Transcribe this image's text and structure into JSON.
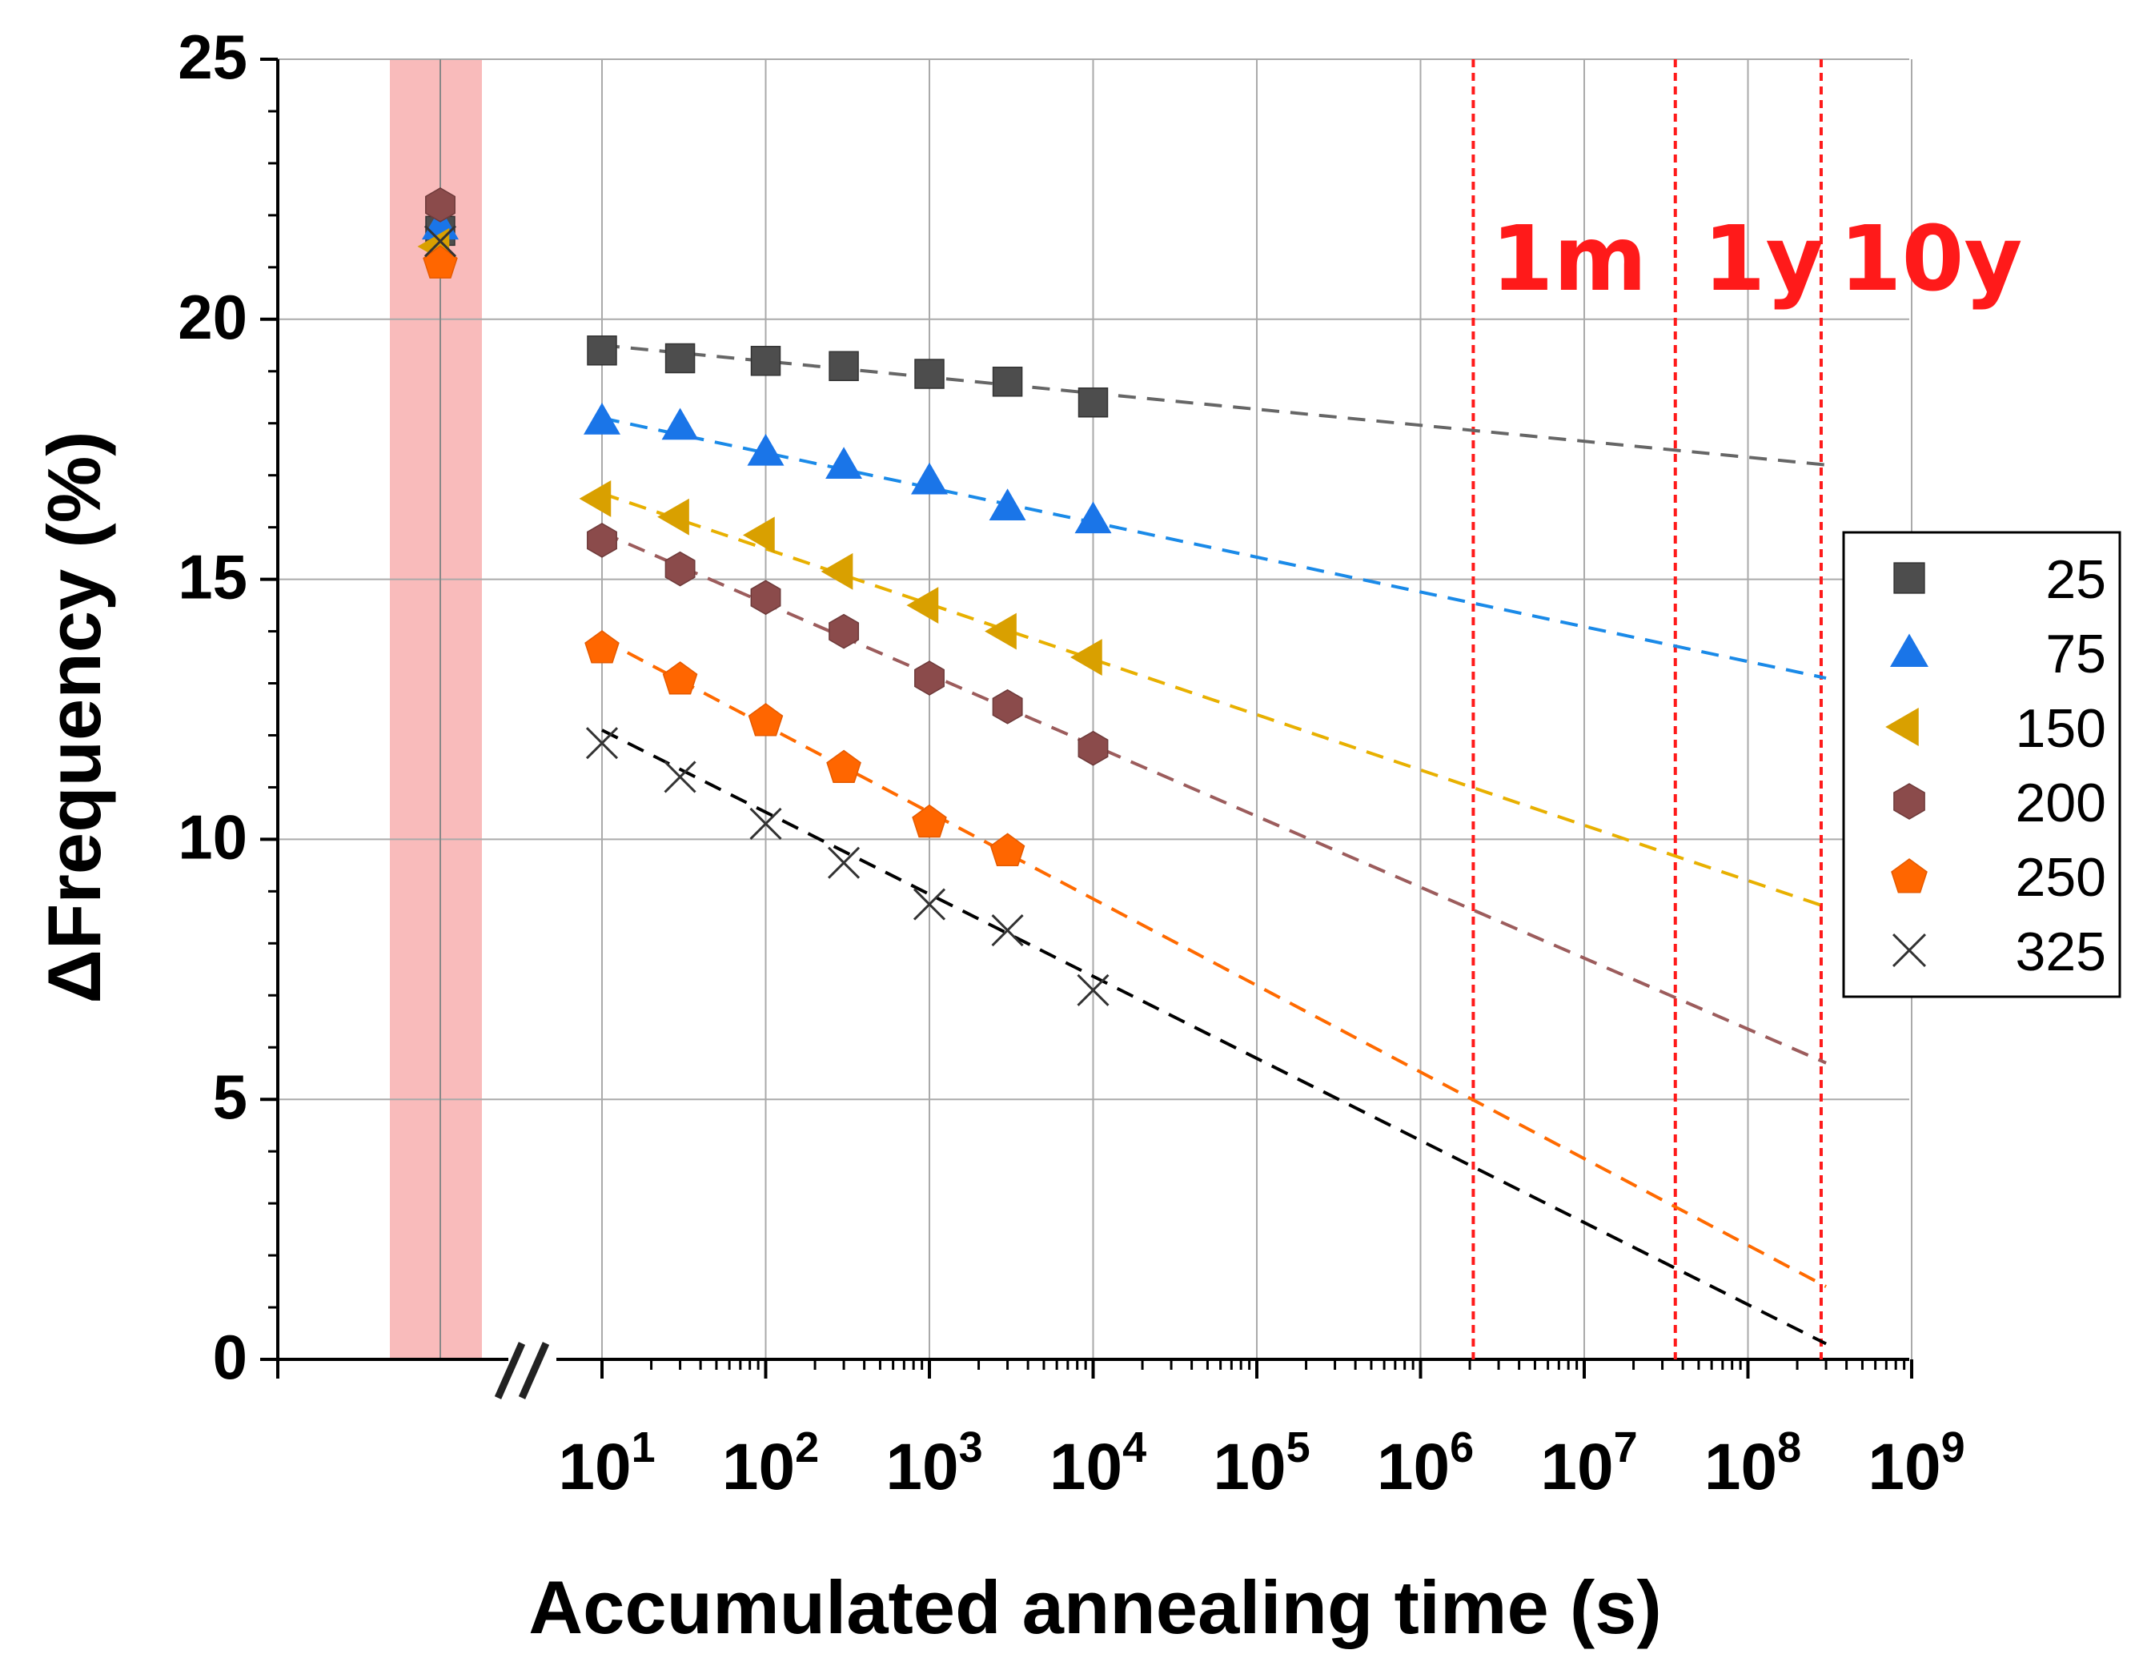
{
  "chart_data": {
    "type": "scatter",
    "title": "",
    "xlabel": "Accumulated annealing time (s)",
    "ylabel": "ΔFrequency (%)",
    "x_scale": "log",
    "xlim_log10": [
      1,
      9
    ],
    "ylim": [
      0,
      25
    ],
    "y_ticks": [
      0,
      5,
      10,
      15,
      20,
      25
    ],
    "x_tick_exponents": [
      1,
      2,
      3,
      4,
      5,
      6,
      7,
      8,
      9
    ],
    "x_tick_base": "10",
    "grid": true,
    "legend_position": "right",
    "initial_band_color": "#f8b4b4",
    "series": [
      {
        "name": "25",
        "marker": "square",
        "color": "#4d4d4d",
        "line_color": "#666666",
        "initial": 21.7,
        "x": [
          10,
          30,
          100,
          300,
          1000,
          3000,
          10000
        ],
        "y": [
          19.4,
          19.25,
          19.2,
          19.1,
          18.95,
          18.8,
          18.4
        ],
        "fit": {
          "x0": 10,
          "y0": 19.5,
          "x1": 300000000.0,
          "y1": 17.2
        }
      },
      {
        "name": "75",
        "marker": "triangle-up",
        "color": "#1a75e8",
        "line_color": "#1a8ae8",
        "initial": 21.8,
        "x": [
          10,
          30,
          100,
          300,
          1000,
          3000,
          10000
        ],
        "y": [
          18.05,
          17.95,
          17.45,
          17.2,
          16.9,
          16.4,
          16.15
        ],
        "fit": {
          "x0": 10,
          "y0": 18.1,
          "x1": 300000000.0,
          "y1": 13.1
        }
      },
      {
        "name": "150",
        "marker": "triangle-left",
        "color": "#d9a000",
        "line_color": "#e8b000",
        "initial": 21.4,
        "x": [
          10,
          30,
          100,
          300,
          1000,
          3000,
          10000
        ],
        "y": [
          16.55,
          16.2,
          15.85,
          15.15,
          14.5,
          14.0,
          13.5
        ],
        "fit": {
          "x0": 10,
          "y0": 16.65,
          "x1": 300000000.0,
          "y1": 8.7
        }
      },
      {
        "name": "200",
        "marker": "hexagon",
        "color": "#8b4b4b",
        "line_color": "#9c5c5c",
        "initial": 22.2,
        "x": [
          10,
          30,
          100,
          300,
          1000,
          3000,
          10000
        ],
        "y": [
          15.75,
          15.2,
          14.65,
          14.0,
          13.1,
          12.55,
          11.75
        ],
        "fit": {
          "x0": 10,
          "y0": 15.9,
          "x1": 300000000.0,
          "y1": 5.7
        }
      },
      {
        "name": "250",
        "marker": "pentagon",
        "color": "#ff6600",
        "line_color": "#ff6a00",
        "initial": 21.1,
        "x": [
          10,
          30,
          100,
          300,
          1000,
          3000
        ],
        "y": [
          13.7,
          13.1,
          12.3,
          11.4,
          10.35,
          9.8
        ],
        "fit": {
          "x0": 10,
          "y0": 13.85,
          "x1": 300000000.0,
          "y1": 1.4
        }
      },
      {
        "name": "325",
        "marker": "x",
        "color": "#333333",
        "line_color": "#000000",
        "initial": 21.5,
        "x": [
          10,
          30,
          100,
          300,
          1000,
          3000,
          10000
        ],
        "y": [
          11.85,
          11.2,
          10.3,
          9.55,
          8.75,
          8.25,
          7.1
        ],
        "fit": {
          "x0": 10,
          "y0": 12.1,
          "x1": 300000000.0,
          "y1": 0.3
        }
      }
    ],
    "markers": [
      {
        "label": "1m",
        "x": 2100000.0
      },
      {
        "label": "1y",
        "x": 36000000.0
      },
      {
        "label": "10y",
        "x": 280000000.0
      }
    ],
    "marker_color": "#ff1a1a"
  }
}
